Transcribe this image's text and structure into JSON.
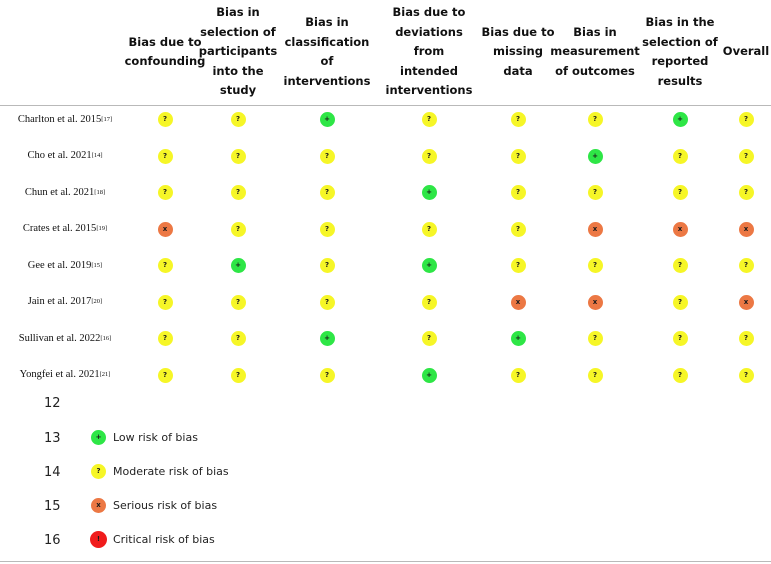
{
  "table": {
    "columns": [
      {
        "key": "confounding",
        "label": "Bias due to\nconfounding"
      },
      {
        "key": "selection",
        "label": "Bias in\nselection of\nparticipants\ninto the\nstudy"
      },
      {
        "key": "classification",
        "label": "Bias in\nclassification\nof\ninterventions"
      },
      {
        "key": "deviations",
        "label": "Bias due to\ndeviations\nfrom\nintended\ninterventions"
      },
      {
        "key": "missing",
        "label": "Bias due to\nmissing\ndata"
      },
      {
        "key": "measurement",
        "label": "Bias in\nmeasurement\nof outcomes"
      },
      {
        "key": "reported",
        "label": "Bias in the\nselection of\nreported\nresults"
      },
      {
        "key": "overall",
        "label": "Overall"
      }
    ],
    "rows": [
      {
        "study": "Charlton et al. 2015",
        "ref": "[17]",
        "ratings": [
          "moderate",
          "moderate",
          "low",
          "moderate",
          "moderate",
          "moderate",
          "low",
          "moderate"
        ]
      },
      {
        "study": "Cho et al. 2021",
        "ref": "[14]",
        "ratings": [
          "moderate",
          "moderate",
          "moderate",
          "moderate",
          "moderate",
          "low",
          "moderate",
          "moderate"
        ]
      },
      {
        "study": "Chun et al. 2021",
        "ref": "[18]",
        "ratings": [
          "moderate",
          "moderate",
          "moderate",
          "low",
          "moderate",
          "moderate",
          "moderate",
          "moderate"
        ]
      },
      {
        "study": "Crates et al. 2015 ",
        "ref": "[19]",
        "ratings": [
          "serious",
          "moderate",
          "moderate",
          "moderate",
          "moderate",
          "serious",
          "serious",
          "serious"
        ]
      },
      {
        "study": "Gee et al. 2019",
        "ref": "[15]",
        "ratings": [
          "moderate",
          "low",
          "moderate",
          "low",
          "moderate",
          "moderate",
          "moderate",
          "moderate"
        ]
      },
      {
        "study": "Jain et al. 2017",
        "ref": "[20]",
        "ratings": [
          "moderate",
          "moderate",
          "moderate",
          "moderate",
          "serious",
          "serious",
          "moderate",
          "serious"
        ]
      },
      {
        "study": "Sullivan et al. 2022",
        "ref": "[16]",
        "ratings": [
          "moderate",
          "moderate",
          "low",
          "moderate",
          "low",
          "moderate",
          "moderate",
          "moderate"
        ]
      },
      {
        "study": "Yongfei et al. 2021",
        "ref": "[21]",
        "ratings": [
          "moderate",
          "moderate",
          "moderate",
          "low",
          "moderate",
          "moderate",
          "moderate",
          "moderate"
        ]
      }
    ]
  },
  "symbols": {
    "low": {
      "glyph": "+",
      "color": "#2ee646"
    },
    "moderate": {
      "glyph": "?",
      "color": "#f6f627"
    },
    "serious": {
      "glyph": "x",
      "color": "#ec7844"
    },
    "critical": {
      "glyph": "!",
      "color": "#f01c1c"
    }
  },
  "legend": [
    {
      "line": "12",
      "label": "",
      "level": ""
    },
    {
      "line": "13",
      "label": "Low risk of bias",
      "level": "low"
    },
    {
      "line": "14",
      "label": "Moderate risk of bias",
      "level": "moderate"
    },
    {
      "line": "15",
      "label": "Serious risk of bias",
      "level": "serious"
    },
    {
      "line": "16",
      "label": "Critical risk of bias",
      "level": "critical"
    }
  ]
}
